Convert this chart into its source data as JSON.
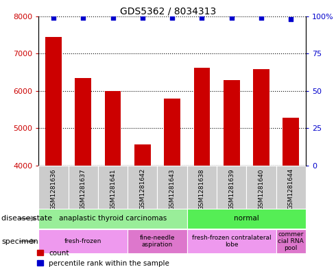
{
  "title": "GDS5362 / 8034313",
  "samples": [
    "GSM1281636",
    "GSM1281637",
    "GSM1281641",
    "GSM1281642",
    "GSM1281643",
    "GSM1281638",
    "GSM1281639",
    "GSM1281640",
    "GSM1281644"
  ],
  "counts": [
    7450,
    6340,
    6000,
    4560,
    5800,
    6620,
    6280,
    6580,
    5280
  ],
  "percentile_ranks": [
    99,
    99,
    99,
    99,
    99,
    99,
    99,
    99,
    98
  ],
  "ylim_left": [
    4000,
    8000
  ],
  "ylim_right": [
    0,
    100
  ],
  "yticks_left": [
    4000,
    5000,
    6000,
    7000,
    8000
  ],
  "yticks_right": [
    0,
    25,
    50,
    75,
    100
  ],
  "bar_color": "#cc0000",
  "dot_color": "#0000cc",
  "disease_state_groups": [
    {
      "label": "anaplastic thyroid carcinomas",
      "start": 0,
      "end": 5,
      "color": "#99ee99"
    },
    {
      "label": "normal",
      "start": 5,
      "end": 9,
      "color": "#55ee55"
    }
  ],
  "specimen_groups": [
    {
      "label": "fresh-frozen",
      "start": 0,
      "end": 3,
      "color": "#ee99ee"
    },
    {
      "label": "fine-needle\naspiration",
      "start": 3,
      "end": 5,
      "color": "#dd77cc"
    },
    {
      "label": "fresh-frozen contralateral\nlobe",
      "start": 5,
      "end": 8,
      "color": "#ee99ee"
    },
    {
      "label": "commer\ncial RNA\npool",
      "start": 8,
      "end": 9,
      "color": "#dd77cc"
    }
  ],
  "tick_bg_color": "#cccccc",
  "left_axis_color": "#cc0000",
  "right_axis_color": "#0000cc",
  "fig_width": 4.9,
  "fig_height": 3.93,
  "dpi": 100
}
